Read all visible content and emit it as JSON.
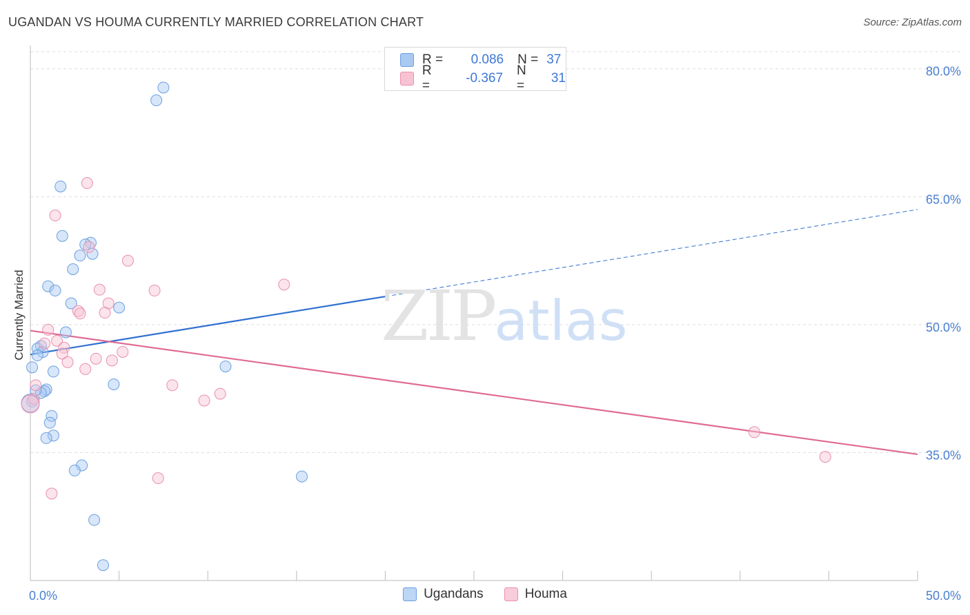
{
  "title": "UGANDAN VS HOUMA CURRENTLY MARRIED CORRELATION CHART",
  "source": "Source: ZipAtlas.com",
  "watermark": {
    "zip": "ZIP",
    "atlas": "atlas"
  },
  "legend": {
    "rows": [
      {
        "r_label": "R =",
        "r_value": "0.086",
        "n_label": "N =",
        "n_value": "37",
        "color": "#a9c8f2",
        "border": "#6a9fe0"
      },
      {
        "r_label": "R =",
        "r_value": "-0.367",
        "n_label": "N =",
        "n_value": "31",
        "color": "#f7c3d3",
        "border": "#e88fae"
      }
    ]
  },
  "bottom_legend": [
    {
      "label": "Ugandans",
      "color": "#bcd6f6",
      "border": "#6a9fe0"
    },
    {
      "label": "Houma",
      "color": "#f9ccd9",
      "border": "#e88fae"
    }
  ],
  "chart_data": {
    "type": "scatter",
    "ylabel": "Currently Married",
    "xlim": [
      0,
      50
    ],
    "ylim": [
      20,
      82
    ],
    "x_tick_labels": [
      {
        "x": 0,
        "label": "0.0%"
      },
      {
        "x": 50,
        "label": "50.0%"
      }
    ],
    "y_tick_labels": [
      {
        "y": 80,
        "label": "80.0%"
      },
      {
        "y": 65,
        "label": "65.0%"
      },
      {
        "y": 50,
        "label": "50.0%"
      },
      {
        "y": 35,
        "label": "35.0%"
      }
    ],
    "series": [
      {
        "name": "Ugandans",
        "color": "#6a9fe0",
        "fill": "rgba(169,200,242,0.45)",
        "trend": {
          "x0": 0,
          "y0": 46.5,
          "x1": 20,
          "y1": 53.3,
          "dash_to_x": 50,
          "dash_to_y": 63.5,
          "color": "#2f6fd0"
        },
        "points": [
          [
            7.5,
            77.8
          ],
          [
            7.1,
            76.3
          ],
          [
            1.7,
            66.2
          ],
          [
            1.8,
            60.4
          ],
          [
            3.4,
            59.6
          ],
          [
            3.1,
            59.4
          ],
          [
            3.5,
            58.3
          ],
          [
            2.8,
            58.1
          ],
          [
            2.4,
            56.5
          ],
          [
            1.0,
            54.5
          ],
          [
            1.4,
            54.0
          ],
          [
            2.3,
            52.5
          ],
          [
            5.0,
            52.0
          ],
          [
            2.0,
            49.1
          ],
          [
            0.6,
            47.5
          ],
          [
            0.4,
            47.2
          ],
          [
            0.7,
            46.8
          ],
          [
            0.4,
            46.4
          ],
          [
            0.1,
            45.0
          ],
          [
            1.3,
            44.5
          ],
          [
            11.0,
            45.1
          ],
          [
            4.7,
            43.0
          ],
          [
            0.9,
            42.4
          ],
          [
            0.8,
            42.2
          ],
          [
            0.6,
            42.0
          ],
          [
            0.3,
            42.3
          ],
          [
            0.1,
            41.0
          ],
          [
            1.2,
            39.3
          ],
          [
            1.1,
            38.5
          ],
          [
            1.3,
            37.0
          ],
          [
            0.9,
            36.7
          ],
          [
            2.9,
            33.5
          ],
          [
            2.5,
            32.9
          ],
          [
            15.3,
            32.2
          ],
          [
            3.6,
            27.1
          ],
          [
            4.1,
            21.8
          ],
          [
            0.0,
            40.8
          ]
        ]
      },
      {
        "name": "Houma",
        "color": "#e88fae",
        "fill": "rgba(247,195,211,0.45)",
        "trend": {
          "x0": 0,
          "y0": 49.3,
          "x1": 50,
          "y1": 34.8,
          "color": "#e06a95"
        },
        "points": [
          [
            3.2,
            66.6
          ],
          [
            1.4,
            62.8
          ],
          [
            5.5,
            57.5
          ],
          [
            3.3,
            59.1
          ],
          [
            14.3,
            54.7
          ],
          [
            3.9,
            54.1
          ],
          [
            7.0,
            54.0
          ],
          [
            4.4,
            52.5
          ],
          [
            2.7,
            51.6
          ],
          [
            2.8,
            51.3
          ],
          [
            4.2,
            51.4
          ],
          [
            1.0,
            49.4
          ],
          [
            1.5,
            48.1
          ],
          [
            0.8,
            47.8
          ],
          [
            1.9,
            47.3
          ],
          [
            5.2,
            46.8
          ],
          [
            1.8,
            46.6
          ],
          [
            3.7,
            46.0
          ],
          [
            4.6,
            45.8
          ],
          [
            2.1,
            45.6
          ],
          [
            3.1,
            44.8
          ],
          [
            0.3,
            42.9
          ],
          [
            8.0,
            42.9
          ],
          [
            10.7,
            41.9
          ],
          [
            9.8,
            41.1
          ],
          [
            0.2,
            41.3
          ],
          [
            40.8,
            37.4
          ],
          [
            44.8,
            34.5
          ],
          [
            7.2,
            32.0
          ],
          [
            1.2,
            30.2
          ],
          [
            0.0,
            40.7
          ]
        ]
      }
    ]
  }
}
